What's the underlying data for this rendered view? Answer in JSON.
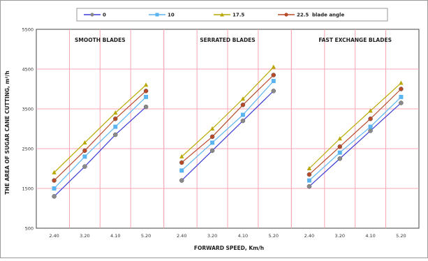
{
  "chart_data": {
    "type": "line",
    "ylabel": "THE AREA OF SUGAR CANE CUTTING, m²/h",
    "xlabel": "FORWARD SPEED, Km/h",
    "ylim": [
      500,
      5500
    ],
    "yticks": [
      500,
      1500,
      2500,
      3500,
      4500,
      5500
    ],
    "grid": true,
    "legend_position": "top",
    "legend_suffix": "blade angle",
    "categories": [
      "2.40",
      "3.20",
      "4.10",
      "5.20"
    ],
    "colors": {
      "plot_background": "#ffffff",
      "grid": "#f4a6b4",
      "frame": "#444444"
    },
    "series": [
      {
        "name": "0",
        "color": "#3b3bd6",
        "marker": "#8a8a8a",
        "marker_shape": "circle"
      },
      {
        "name": "10",
        "color": "#5ab4f0",
        "marker": "#5ab4f0",
        "marker_shape": "square"
      },
      {
        "name": "17.5",
        "color": "#b8a800",
        "marker": "#b8a800",
        "marker_shape": "triangle"
      },
      {
        "name": "22.5",
        "color": "#b84a28",
        "marker": "#b84a28",
        "marker_shape": "circle"
      }
    ],
    "panels": [
      {
        "title": "SMOOTH BLADES",
        "values": {
          "0": [
            1300,
            2050,
            2850,
            3550
          ],
          "10": [
            1500,
            2300,
            3050,
            3800
          ],
          "17.5": [
            1900,
            2650,
            3400,
            4100
          ],
          "22.5": [
            1700,
            2450,
            3250,
            3950
          ]
        }
      },
      {
        "title": "SERRATED BLADES",
        "values": {
          "0": [
            1700,
            2450,
            3200,
            3950
          ],
          "10": [
            1950,
            2650,
            3350,
            4200
          ],
          "17.5": [
            2300,
            3000,
            3750,
            4550
          ],
          "22.5": [
            2150,
            2800,
            3600,
            4350
          ]
        }
      },
      {
        "title": "FAST EXCHANGE BLADES",
        "values": {
          "0": [
            1550,
            2250,
            2950,
            3650
          ],
          "10": [
            1700,
            2400,
            3050,
            3800
          ],
          "17.5": [
            2000,
            2750,
            3450,
            4150
          ],
          "22.5": [
            1850,
            2550,
            3250,
            4000
          ]
        }
      }
    ]
  }
}
